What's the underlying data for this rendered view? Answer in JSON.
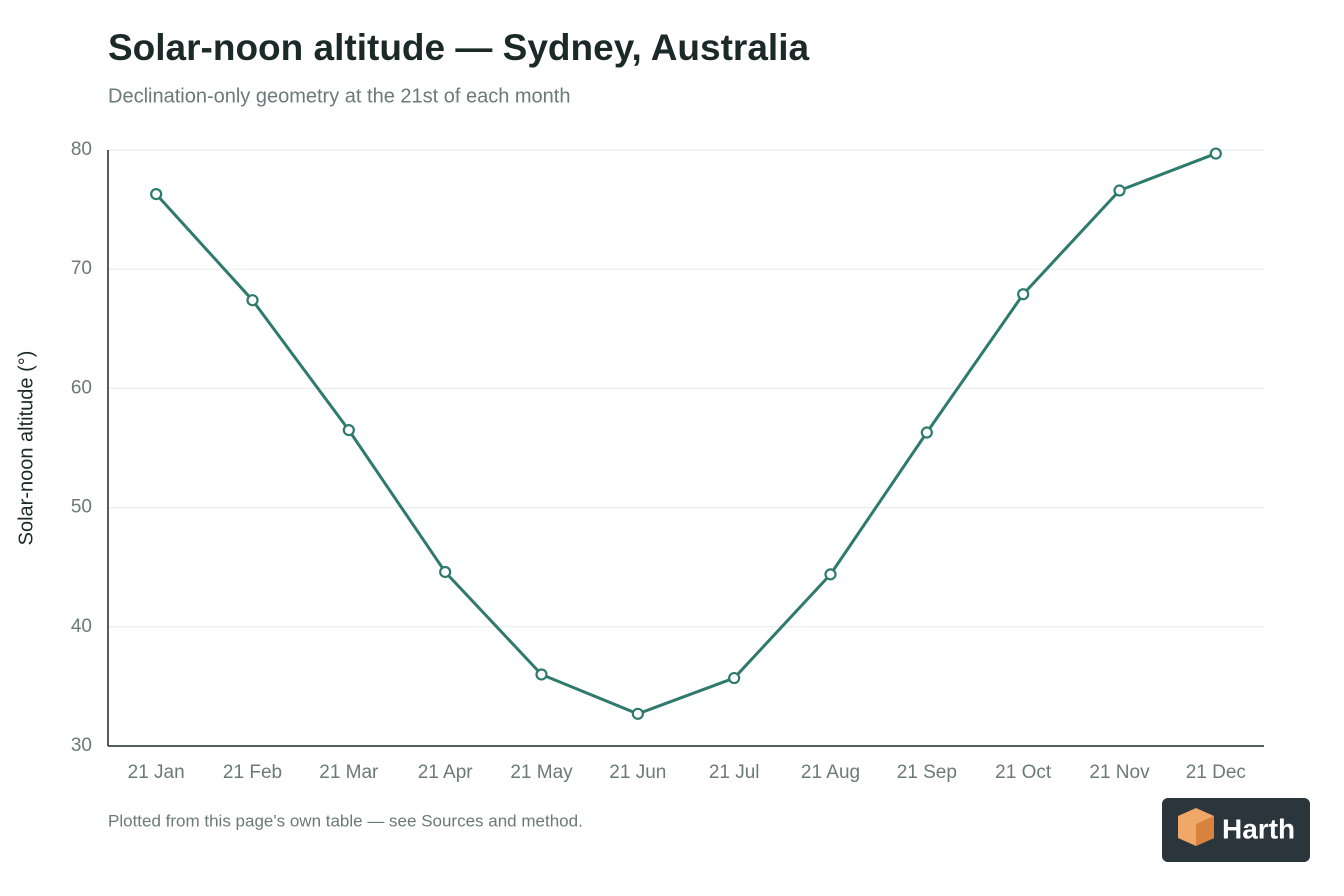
{
  "chart_data": {
    "type": "line",
    "title": "Solar-noon altitude — Sydney, Australia",
    "subtitle": "Declination-only geometry at the 21st of each month",
    "y_label": "Solar-noon altitude (°)",
    "categories": [
      "21 Jan",
      "21 Feb",
      "21 Mar",
      "21 Apr",
      "21 May",
      "21 Jun",
      "21 Jul",
      "21 Aug",
      "21 Sep",
      "21 Oct",
      "21 Nov",
      "21 Dec"
    ],
    "values": [
      76.3,
      67.4,
      56.5,
      44.6,
      36.0,
      32.7,
      35.7,
      44.4,
      56.3,
      67.9,
      76.6,
      79.7
    ],
    "color": "#2e7b6e",
    "ylim": [
      30,
      80
    ],
    "yticks": [
      30,
      40,
      50,
      60,
      70,
      80
    ],
    "grid": true,
    "footnote": "Plotted from this page's own table — see Sources and method."
  },
  "logo": "Harth"
}
